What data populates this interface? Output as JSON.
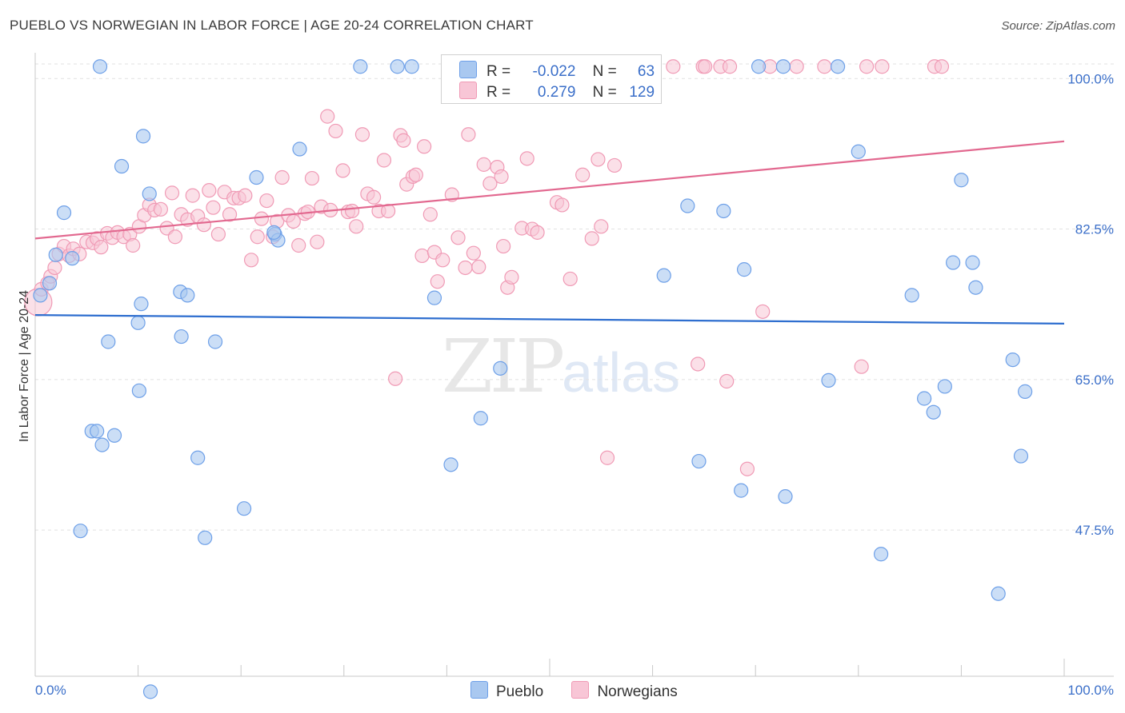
{
  "title": "PUEBLO VS NORWEGIAN IN LABOR FORCE | AGE 20-24 CORRELATION CHART",
  "source": "Source: ZipAtlas.com",
  "watermark": {
    "zip": "ZIP",
    "atlas": "atlas"
  },
  "colors": {
    "pueblo": "#6ea0e8",
    "pueblo_fill": "#a9c8f0",
    "norwegians": "#f09ab5",
    "norwegians_fill": "#f8c6d6",
    "pueblo_line": "#2e6ecf",
    "norwegians_line": "#e2688f"
  },
  "legend": {
    "rows": [
      {
        "r_label": "R =",
        "r_value": "-0.022",
        "n_label": "N =",
        "n_value": "63"
      },
      {
        "r_label": "R =",
        "r_value": "0.279",
        "n_label": "N =",
        "n_value": "129"
      }
    ]
  },
  "bottom_legend": [
    "Pueblo",
    "Norwegians"
  ],
  "chart_data": {
    "type": "scatter",
    "title": "PUEBLO VS NORWEGIAN IN LABOR FORCE | AGE 20-24 CORRELATION CHART",
    "xlabel": "",
    "ylabel": "In Labor Force | Age 20-24",
    "x_tick_labels": [
      "0.0%",
      "100.0%"
    ],
    "y_tick_labels": [
      "100.0%",
      "82.5%",
      "65.0%",
      "47.5%"
    ],
    "y_ticks": [
      100.0,
      82.5,
      65.0,
      47.5
    ],
    "xlim": [
      0,
      100
    ],
    "ylim": [
      30.5,
      101.7
    ],
    "grid": true,
    "legend_position": "top-center",
    "series": [
      {
        "name": "Pueblo",
        "trend": {
          "x": [
            0,
            100
          ],
          "y": [
            72.5,
            71.5
          ]
        },
        "points": [
          [
            0.5,
            74.8
          ],
          [
            1.4,
            76.2
          ],
          [
            2.0,
            79.5
          ],
          [
            2.8,
            84.4
          ],
          [
            3.6,
            79.1
          ],
          [
            6.3,
            101.4
          ],
          [
            8.4,
            89.8
          ],
          [
            10.3,
            73.8
          ],
          [
            10.0,
            71.6
          ],
          [
            7.1,
            69.4
          ],
          [
            10.1,
            63.7
          ],
          [
            5.5,
            59.0
          ],
          [
            4.4,
            47.4
          ],
          [
            6.0,
            59.0
          ],
          [
            6.5,
            57.4
          ],
          [
            7.7,
            58.5
          ],
          [
            11.2,
            28.7
          ],
          [
            10.5,
            93.3
          ],
          [
            11.1,
            86.6
          ],
          [
            14.1,
            75.2
          ],
          [
            14.8,
            74.8
          ],
          [
            14.2,
            70.0
          ],
          [
            17.5,
            69.4
          ],
          [
            15.8,
            55.9
          ],
          [
            16.5,
            46.6
          ],
          [
            20.3,
            50.0
          ],
          [
            21.5,
            88.5
          ],
          [
            23.3,
            81.9
          ],
          [
            23.6,
            81.2
          ],
          [
            25.7,
            91.8
          ],
          [
            31.6,
            101.4
          ],
          [
            35.2,
            101.4
          ],
          [
            36.6,
            101.4
          ],
          [
            38.8,
            74.5
          ],
          [
            40.4,
            55.1
          ],
          [
            43.3,
            60.5
          ],
          [
            45.2,
            66.3
          ],
          [
            61.1,
            77.1
          ],
          [
            63.4,
            85.2
          ],
          [
            64.5,
            55.5
          ],
          [
            66.9,
            84.6
          ],
          [
            68.6,
            52.1
          ],
          [
            68.9,
            77.8
          ],
          [
            70.3,
            101.4
          ],
          [
            72.7,
            101.4
          ],
          [
            72.9,
            51.4
          ],
          [
            77.1,
            64.9
          ],
          [
            78.0,
            101.4
          ],
          [
            80.0,
            91.5
          ],
          [
            82.2,
            44.7
          ],
          [
            85.2,
            74.8
          ],
          [
            86.4,
            62.8
          ],
          [
            87.3,
            61.2
          ],
          [
            88.4,
            64.2
          ],
          [
            89.2,
            78.6
          ],
          [
            90.0,
            88.2
          ],
          [
            91.1,
            78.6
          ],
          [
            91.4,
            75.7
          ],
          [
            93.6,
            40.1
          ],
          [
            95.0,
            67.3
          ],
          [
            96.2,
            63.6
          ],
          [
            95.8,
            56.1
          ],
          [
            23.2,
            82.1
          ]
        ]
      },
      {
        "name": "Norwegians",
        "trend": {
          "x": [
            0,
            100
          ],
          "y": [
            81.4,
            92.7
          ]
        },
        "points": [
          [
            0.3,
            74.0
          ],
          [
            0.6,
            75.5
          ],
          [
            1.2,
            76.2
          ],
          [
            1.5,
            77.0
          ],
          [
            1.9,
            78.0
          ],
          [
            2.3,
            79.6
          ],
          [
            2.8,
            80.5
          ],
          [
            3.3,
            79.4
          ],
          [
            3.7,
            80.2
          ],
          [
            4.3,
            79.6
          ],
          [
            5.0,
            81.0
          ],
          [
            5.6,
            80.9
          ],
          [
            6.0,
            81.4
          ],
          [
            6.4,
            80.4
          ],
          [
            7.0,
            82.0
          ],
          [
            7.5,
            81.5
          ],
          [
            8.0,
            82.1
          ],
          [
            8.6,
            81.6
          ],
          [
            9.2,
            81.9
          ],
          [
            9.5,
            80.6
          ],
          [
            10.1,
            82.8
          ],
          [
            10.6,
            84.1
          ],
          [
            11.1,
            85.3
          ],
          [
            11.6,
            84.7
          ],
          [
            12.2,
            84.8
          ],
          [
            12.8,
            82.6
          ],
          [
            13.3,
            86.7
          ],
          [
            13.6,
            81.6
          ],
          [
            14.2,
            84.2
          ],
          [
            14.8,
            83.6
          ],
          [
            15.3,
            86.4
          ],
          [
            15.8,
            84.0
          ],
          [
            16.4,
            83.0
          ],
          [
            16.9,
            87.0
          ],
          [
            17.3,
            85.0
          ],
          [
            17.8,
            81.9
          ],
          [
            18.4,
            86.8
          ],
          [
            18.9,
            84.2
          ],
          [
            19.3,
            86.1
          ],
          [
            19.8,
            86.1
          ],
          [
            20.4,
            86.4
          ],
          [
            21.0,
            78.9
          ],
          [
            21.6,
            81.6
          ],
          [
            22.0,
            83.7
          ],
          [
            22.5,
            85.8
          ],
          [
            23.1,
            81.6
          ],
          [
            23.5,
            83.4
          ],
          [
            24.0,
            88.5
          ],
          [
            24.6,
            84.1
          ],
          [
            25.1,
            83.4
          ],
          [
            25.6,
            80.6
          ],
          [
            26.2,
            84.3
          ],
          [
            26.5,
            84.5
          ],
          [
            26.9,
            88.4
          ],
          [
            27.4,
            81.0
          ],
          [
            27.8,
            85.1
          ],
          [
            28.4,
            95.6
          ],
          [
            28.7,
            84.7
          ],
          [
            29.2,
            93.9
          ],
          [
            29.9,
            89.3
          ],
          [
            30.4,
            84.5
          ],
          [
            30.8,
            84.6
          ],
          [
            31.2,
            82.8
          ],
          [
            31.8,
            93.5
          ],
          [
            32.3,
            86.6
          ],
          [
            32.9,
            86.2
          ],
          [
            33.4,
            84.6
          ],
          [
            33.9,
            90.5
          ],
          [
            34.3,
            84.6
          ],
          [
            35.0,
            65.1
          ],
          [
            35.5,
            93.4
          ],
          [
            35.8,
            92.8
          ],
          [
            36.1,
            87.7
          ],
          [
            36.7,
            88.6
          ],
          [
            37.0,
            88.8
          ],
          [
            37.6,
            79.4
          ],
          [
            37.8,
            92.1
          ],
          [
            38.4,
            84.2
          ],
          [
            38.8,
            79.8
          ],
          [
            39.1,
            76.4
          ],
          [
            39.6,
            78.9
          ],
          [
            40.5,
            86.5
          ],
          [
            41.1,
            81.5
          ],
          [
            41.8,
            78.0
          ],
          [
            42.1,
            93.5
          ],
          [
            42.6,
            79.7
          ],
          [
            43.1,
            78.1
          ],
          [
            43.6,
            90.0
          ],
          [
            44.2,
            87.8
          ],
          [
            44.9,
            89.7
          ],
          [
            45.3,
            88.6
          ],
          [
            45.9,
            75.7
          ],
          [
            46.3,
            76.9
          ],
          [
            46.8,
            101.4
          ],
          [
            47.3,
            82.6
          ],
          [
            47.8,
            90.7
          ],
          [
            48.3,
            82.5
          ],
          [
            48.8,
            82.1
          ],
          [
            50.7,
            85.6
          ],
          [
            51.2,
            85.3
          ],
          [
            52.0,
            76.7
          ],
          [
            53.2,
            88.8
          ],
          [
            54.1,
            81.4
          ],
          [
            54.7,
            90.6
          ],
          [
            55.0,
            82.8
          ],
          [
            55.6,
            55.9
          ],
          [
            56.3,
            89.9
          ],
          [
            56.6,
            101.4
          ],
          [
            57.5,
            101.4
          ],
          [
            59.0,
            101.4
          ],
          [
            62.0,
            101.4
          ],
          [
            64.4,
            66.8
          ],
          [
            64.9,
            101.4
          ],
          [
            66.6,
            101.4
          ],
          [
            67.2,
            64.8
          ],
          [
            67.5,
            101.4
          ],
          [
            69.2,
            54.6
          ],
          [
            70.7,
            72.9
          ],
          [
            71.4,
            101.4
          ],
          [
            74.0,
            101.4
          ],
          [
            76.7,
            101.4
          ],
          [
            80.3,
            66.5
          ],
          [
            80.8,
            101.4
          ],
          [
            82.3,
            101.4
          ],
          [
            87.4,
            101.4
          ],
          [
            88.1,
            101.4
          ],
          [
            65.1,
            101.4
          ],
          [
            45.5,
            80.5
          ]
        ]
      }
    ]
  },
  "axis": {
    "y_title": "In Labor Force | Age 20-24"
  }
}
